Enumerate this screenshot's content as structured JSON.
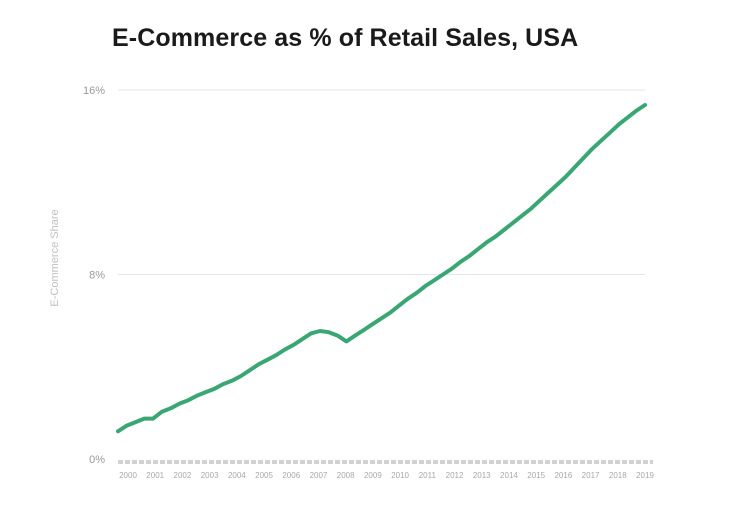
{
  "chart_data": {
    "type": "line",
    "title": "E-Commerce as % of Retail Sales, USA",
    "ylabel": "E-Commerce Share",
    "xlabel": "",
    "ylim": [
      0,
      16
    ],
    "yticks": [
      0,
      8,
      16
    ],
    "ytick_labels": [
      "0%",
      "8%",
      "16%"
    ],
    "xticks": [
      "2000",
      "2001",
      "2002",
      "2003",
      "2004",
      "2005",
      "2006",
      "2007",
      "2008",
      "2009",
      "2010",
      "2011",
      "2012",
      "2013",
      "2014",
      "2015",
      "2016",
      "2017",
      "2018",
      "2019"
    ],
    "grid": true,
    "line_color": "#3aa674",
    "series": [
      {
        "values": [
          1.2,
          1.45,
          1.6,
          1.75,
          1.75,
          2.05,
          2.2,
          2.4,
          2.55,
          2.75,
          2.9,
          3.05,
          3.25,
          3.4,
          3.6,
          3.85,
          4.1,
          4.3,
          4.5,
          4.75,
          4.95,
          5.2,
          5.45,
          5.55,
          5.5,
          5.35,
          5.1,
          5.35,
          5.6,
          5.85,
          6.1,
          6.35,
          6.65,
          6.95,
          7.2,
          7.5,
          7.75,
          8.0,
          8.25,
          8.55,
          8.8,
          9.1,
          9.4,
          9.65,
          9.95,
          10.25,
          10.55,
          10.85,
          11.2,
          11.55,
          11.9,
          12.25,
          12.65,
          13.05,
          13.45,
          13.8,
          14.15,
          14.5,
          14.8,
          15.1,
          15.35
        ]
      }
    ]
  }
}
